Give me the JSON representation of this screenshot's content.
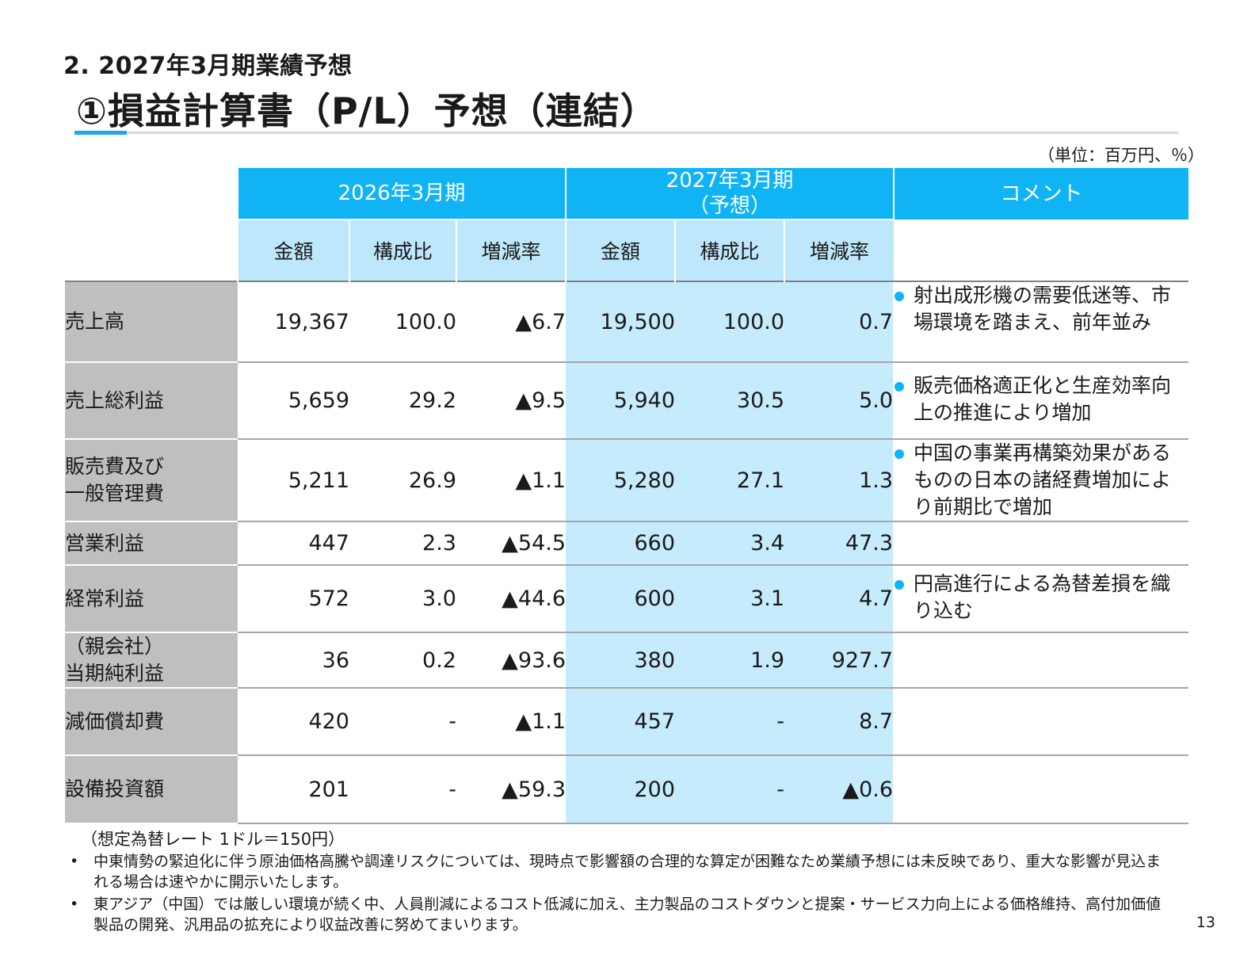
{
  "header": {
    "section": "2. 2027年3月期業績予想",
    "title": "①損益計算書（P/L）予想（連結）",
    "unit": "（単位：百万円、％）"
  },
  "table": {
    "group_headers": [
      "2026年3月期",
      "2027年3月期",
      "（予想）",
      "コメント"
    ],
    "sub_headers": [
      "金額",
      "構成比",
      "増減率",
      "金額",
      "構成比",
      "増減率"
    ],
    "rows": [
      {
        "label": [
          "売上高"
        ],
        "values": [
          "19,367",
          "100.0",
          "▲6.7",
          "19,500",
          "100.0",
          "0.7"
        ],
        "comment": [
          "射出成形機の需要低迷等、市場環境を踏まえ、前年並み"
        ]
      },
      {
        "label": [
          "売上総利益"
        ],
        "values": [
          "5,659",
          "29.2",
          "▲9.5",
          "5,940",
          "30.5",
          "5.0"
        ],
        "comment": [
          "販売価格適正化と生産効率向上の推進により増加"
        ]
      },
      {
        "label": [
          "販売費及び",
          "一般管理費"
        ],
        "values": [
          "5,211",
          "26.9",
          "▲1.1",
          "5,280",
          "27.1",
          "1.3"
        ],
        "comment": [
          "中国の事業再構築効果があるものの日本の諸経費増加により前期比で増加"
        ]
      },
      {
        "label": [
          "営業利益"
        ],
        "values": [
          "447",
          "2.3",
          "▲54.5",
          "660",
          "3.4",
          "47.3"
        ],
        "comment": [
          ""
        ]
      },
      {
        "label": [
          "経常利益"
        ],
        "values": [
          "572",
          "3.0",
          "▲44.6",
          "600",
          "3.1",
          "4.7"
        ],
        "comment": [
          "円高進行による為替差損を織り込む"
        ]
      },
      {
        "label": [
          "（親会社）",
          "当期純利益"
        ],
        "values": [
          "36",
          "0.2",
          "▲93.6",
          "380",
          "1.9",
          "927.7"
        ],
        "comment": [
          ""
        ]
      },
      {
        "label": [
          "減価償却費"
        ],
        "values": [
          "420",
          "-",
          "▲1.1",
          "457",
          "-",
          "8.7"
        ],
        "comment": [
          ""
        ]
      },
      {
        "label": [
          "設備投資額"
        ],
        "values": [
          "201",
          "-",
          "▲59.3",
          "200",
          "-",
          "▲0.6"
        ],
        "comment": [
          ""
        ]
      }
    ]
  },
  "footer": {
    "fx_note": "（想定為替レート 1ドル＝150円）",
    "notes": [
      "中東情勢の緊迫化に伴う原油価格高騰や調達リスクについては、現時点で影響額の合理的な算定が困難なため業績予想には未反映であり、重大な影響が見込まれる場合は速やかに開示いたします。",
      "東アジア（中国）では厳しい環境が続く中、人員削減によるコスト低減に加え、主力製品のコストダウンと提案・サービス力向上による価格維持、高付加価値製品の開発、汎用品の拡充により収益改善に努めてまいります。"
    ],
    "bullet_mark": "•",
    "page_number": "13"
  },
  "colors": {
    "header_blue": "#10b4f5",
    "sub_header_light": "#bfe7fb",
    "forecast_fill": "#c5ebfc",
    "label_grey": "#bfbfbf",
    "accent_line": "#1ea7e8"
  }
}
